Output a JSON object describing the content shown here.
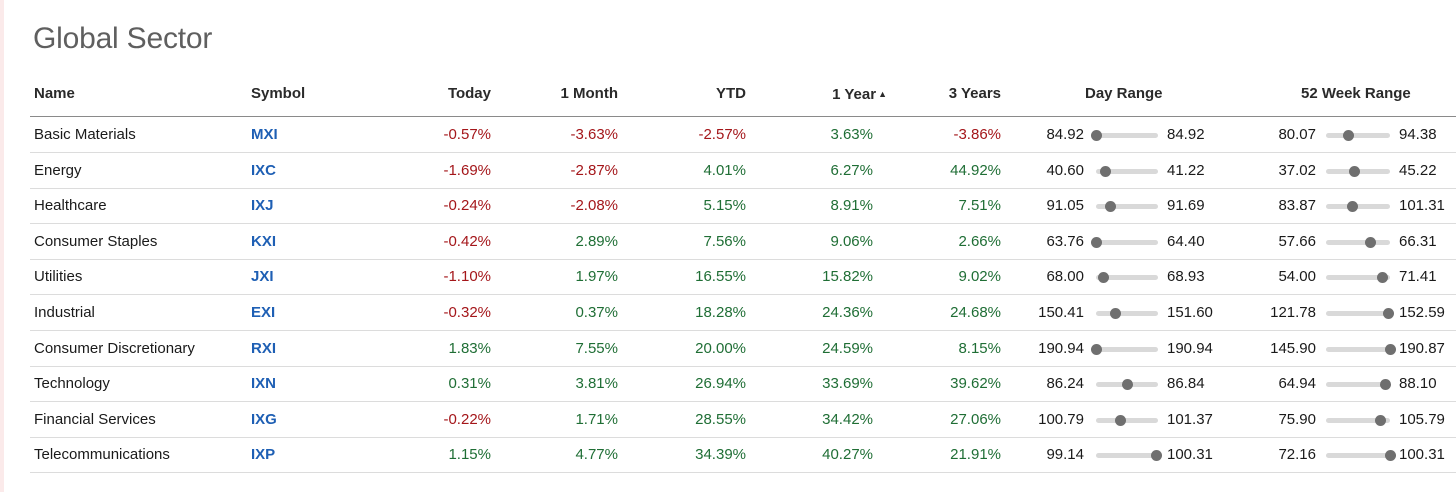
{
  "title": "Global Sector",
  "columns": {
    "name": "Name",
    "symbol": "Symbol",
    "today": "Today",
    "month": "1 Month",
    "ytd": "YTD",
    "year": "1 Year",
    "year_sort_icon": "▲",
    "three_years": "3 Years",
    "day_range": "Day Range",
    "week52_range": "52 Week Range"
  },
  "colors": {
    "negative": "#a4161a",
    "positive": "#1f6e35",
    "symbol": "#1e5fb4"
  },
  "rows": [
    {
      "name": "Basic Materials",
      "symbol": "MXI",
      "today": "-0.57%",
      "month": "-3.63%",
      "ytd": "-2.57%",
      "year": "3.63%",
      "three_years": "-3.86%",
      "day_lo": "84.92",
      "day_hi": "84.92",
      "day_pos": 0.0,
      "wk_lo": "80.07",
      "wk_hi": "94.38",
      "wk_pos": 0.34
    },
    {
      "name": "Energy",
      "symbol": "IXC",
      "today": "-1.69%",
      "month": "-2.87%",
      "ytd": "4.01%",
      "year": "6.27%",
      "three_years": "44.92%",
      "day_lo": "40.60",
      "day_hi": "41.22",
      "day_pos": 0.15,
      "wk_lo": "37.02",
      "wk_hi": "45.22",
      "wk_pos": 0.43
    },
    {
      "name": "Healthcare",
      "symbol": "IXJ",
      "today": "-0.24%",
      "month": "-2.08%",
      "ytd": "5.15%",
      "year": "8.91%",
      "three_years": "7.51%",
      "day_lo": "91.05",
      "day_hi": "91.69",
      "day_pos": 0.22,
      "wk_lo": "83.87",
      "wk_hi": "101.31",
      "wk_pos": 0.4
    },
    {
      "name": "Consumer Staples",
      "symbol": "KXI",
      "today": "-0.42%",
      "month": "2.89%",
      "ytd": "7.56%",
      "year": "9.06%",
      "three_years": "2.66%",
      "day_lo": "63.76",
      "day_hi": "64.40",
      "day_pos": 0.0,
      "wk_lo": "57.66",
      "wk_hi": "66.31",
      "wk_pos": 0.68
    },
    {
      "name": "Utilities",
      "symbol": "JXI",
      "today": "-1.10%",
      "month": "1.97%",
      "ytd": "16.55%",
      "year": "15.82%",
      "three_years": "9.02%",
      "day_lo": "68.00",
      "day_hi": "68.93",
      "day_pos": 0.12,
      "wk_lo": "54.00",
      "wk_hi": "71.41",
      "wk_pos": 0.87
    },
    {
      "name": "Industrial",
      "symbol": "EXI",
      "today": "-0.32%",
      "month": "0.37%",
      "ytd": "18.28%",
      "year": "24.36%",
      "three_years": "24.68%",
      "day_lo": "150.41",
      "day_hi": "151.60",
      "day_pos": 0.3,
      "wk_lo": "121.78",
      "wk_hi": "152.59",
      "wk_pos": 0.97
    },
    {
      "name": "Consumer Discretionary",
      "symbol": "RXI",
      "today": "1.83%",
      "month": "7.55%",
      "ytd": "20.00%",
      "year": "24.59%",
      "three_years": "8.15%",
      "day_lo": "190.94",
      "day_hi": "190.94",
      "day_pos": 0.0,
      "wk_lo": "145.90",
      "wk_hi": "190.87",
      "wk_pos": 1.0
    },
    {
      "name": "Technology",
      "symbol": "IXN",
      "today": "0.31%",
      "month": "3.81%",
      "ytd": "26.94%",
      "year": "33.69%",
      "three_years": "39.62%",
      "day_lo": "86.24",
      "day_hi": "86.84",
      "day_pos": 0.5,
      "wk_lo": "64.94",
      "wk_hi": "88.10",
      "wk_pos": 0.92
    },
    {
      "name": "Financial Services",
      "symbol": "IXG",
      "today": "-0.22%",
      "month": "1.71%",
      "ytd": "28.55%",
      "year": "34.42%",
      "three_years": "27.06%",
      "day_lo": "100.79",
      "day_hi": "101.37",
      "day_pos": 0.38,
      "wk_lo": "75.90",
      "wk_hi": "105.79",
      "wk_pos": 0.85
    },
    {
      "name": "Telecommunications",
      "symbol": "IXP",
      "today": "1.15%",
      "month": "4.77%",
      "ytd": "34.39%",
      "year": "40.27%",
      "three_years": "21.91%",
      "day_lo": "99.14",
      "day_hi": "100.31",
      "day_pos": 0.97,
      "wk_lo": "72.16",
      "wk_hi": "100.31",
      "wk_pos": 1.0
    }
  ]
}
